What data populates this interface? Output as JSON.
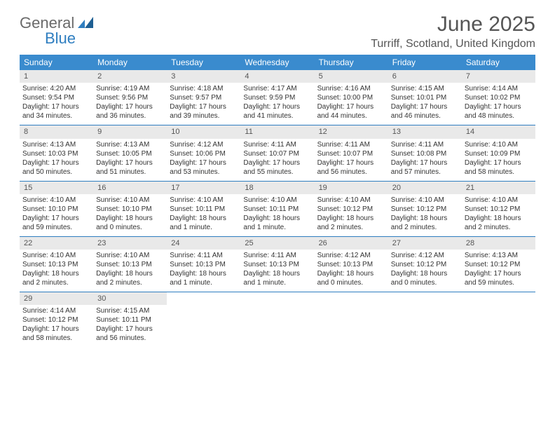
{
  "logo": {
    "general": "General",
    "blue": "Blue"
  },
  "header": {
    "month_title": "June 2025",
    "location": "Turriff, Scotland, United Kingdom"
  },
  "colors": {
    "accent": "#3a8bce",
    "separator": "#2f7ec0",
    "daynum_bg": "#e9e9e9",
    "text": "#333333"
  },
  "day_headers": [
    "Sunday",
    "Monday",
    "Tuesday",
    "Wednesday",
    "Thursday",
    "Friday",
    "Saturday"
  ],
  "weeks": [
    [
      {
        "n": "1",
        "sunrise": "Sunrise: 4:20 AM",
        "sunset": "Sunset: 9:54 PM",
        "d1": "Daylight: 17 hours",
        "d2": "and 34 minutes."
      },
      {
        "n": "2",
        "sunrise": "Sunrise: 4:19 AM",
        "sunset": "Sunset: 9:56 PM",
        "d1": "Daylight: 17 hours",
        "d2": "and 36 minutes."
      },
      {
        "n": "3",
        "sunrise": "Sunrise: 4:18 AM",
        "sunset": "Sunset: 9:57 PM",
        "d1": "Daylight: 17 hours",
        "d2": "and 39 minutes."
      },
      {
        "n": "4",
        "sunrise": "Sunrise: 4:17 AM",
        "sunset": "Sunset: 9:59 PM",
        "d1": "Daylight: 17 hours",
        "d2": "and 41 minutes."
      },
      {
        "n": "5",
        "sunrise": "Sunrise: 4:16 AM",
        "sunset": "Sunset: 10:00 PM",
        "d1": "Daylight: 17 hours",
        "d2": "and 44 minutes."
      },
      {
        "n": "6",
        "sunrise": "Sunrise: 4:15 AM",
        "sunset": "Sunset: 10:01 PM",
        "d1": "Daylight: 17 hours",
        "d2": "and 46 minutes."
      },
      {
        "n": "7",
        "sunrise": "Sunrise: 4:14 AM",
        "sunset": "Sunset: 10:02 PM",
        "d1": "Daylight: 17 hours",
        "d2": "and 48 minutes."
      }
    ],
    [
      {
        "n": "8",
        "sunrise": "Sunrise: 4:13 AM",
        "sunset": "Sunset: 10:03 PM",
        "d1": "Daylight: 17 hours",
        "d2": "and 50 minutes."
      },
      {
        "n": "9",
        "sunrise": "Sunrise: 4:13 AM",
        "sunset": "Sunset: 10:05 PM",
        "d1": "Daylight: 17 hours",
        "d2": "and 51 minutes."
      },
      {
        "n": "10",
        "sunrise": "Sunrise: 4:12 AM",
        "sunset": "Sunset: 10:06 PM",
        "d1": "Daylight: 17 hours",
        "d2": "and 53 minutes."
      },
      {
        "n": "11",
        "sunrise": "Sunrise: 4:11 AM",
        "sunset": "Sunset: 10:07 PM",
        "d1": "Daylight: 17 hours",
        "d2": "and 55 minutes."
      },
      {
        "n": "12",
        "sunrise": "Sunrise: 4:11 AM",
        "sunset": "Sunset: 10:07 PM",
        "d1": "Daylight: 17 hours",
        "d2": "and 56 minutes."
      },
      {
        "n": "13",
        "sunrise": "Sunrise: 4:11 AM",
        "sunset": "Sunset: 10:08 PM",
        "d1": "Daylight: 17 hours",
        "d2": "and 57 minutes."
      },
      {
        "n": "14",
        "sunrise": "Sunrise: 4:10 AM",
        "sunset": "Sunset: 10:09 PM",
        "d1": "Daylight: 17 hours",
        "d2": "and 58 minutes."
      }
    ],
    [
      {
        "n": "15",
        "sunrise": "Sunrise: 4:10 AM",
        "sunset": "Sunset: 10:10 PM",
        "d1": "Daylight: 17 hours",
        "d2": "and 59 minutes."
      },
      {
        "n": "16",
        "sunrise": "Sunrise: 4:10 AM",
        "sunset": "Sunset: 10:10 PM",
        "d1": "Daylight: 18 hours",
        "d2": "and 0 minutes."
      },
      {
        "n": "17",
        "sunrise": "Sunrise: 4:10 AM",
        "sunset": "Sunset: 10:11 PM",
        "d1": "Daylight: 18 hours",
        "d2": "and 1 minute."
      },
      {
        "n": "18",
        "sunrise": "Sunrise: 4:10 AM",
        "sunset": "Sunset: 10:11 PM",
        "d1": "Daylight: 18 hours",
        "d2": "and 1 minute."
      },
      {
        "n": "19",
        "sunrise": "Sunrise: 4:10 AM",
        "sunset": "Sunset: 10:12 PM",
        "d1": "Daylight: 18 hours",
        "d2": "and 2 minutes."
      },
      {
        "n": "20",
        "sunrise": "Sunrise: 4:10 AM",
        "sunset": "Sunset: 10:12 PM",
        "d1": "Daylight: 18 hours",
        "d2": "and 2 minutes."
      },
      {
        "n": "21",
        "sunrise": "Sunrise: 4:10 AM",
        "sunset": "Sunset: 10:12 PM",
        "d1": "Daylight: 18 hours",
        "d2": "and 2 minutes."
      }
    ],
    [
      {
        "n": "22",
        "sunrise": "Sunrise: 4:10 AM",
        "sunset": "Sunset: 10:13 PM",
        "d1": "Daylight: 18 hours",
        "d2": "and 2 minutes."
      },
      {
        "n": "23",
        "sunrise": "Sunrise: 4:10 AM",
        "sunset": "Sunset: 10:13 PM",
        "d1": "Daylight: 18 hours",
        "d2": "and 2 minutes."
      },
      {
        "n": "24",
        "sunrise": "Sunrise: 4:11 AM",
        "sunset": "Sunset: 10:13 PM",
        "d1": "Daylight: 18 hours",
        "d2": "and 1 minute."
      },
      {
        "n": "25",
        "sunrise": "Sunrise: 4:11 AM",
        "sunset": "Sunset: 10:13 PM",
        "d1": "Daylight: 18 hours",
        "d2": "and 1 minute."
      },
      {
        "n": "26",
        "sunrise": "Sunrise: 4:12 AM",
        "sunset": "Sunset: 10:13 PM",
        "d1": "Daylight: 18 hours",
        "d2": "and 0 minutes."
      },
      {
        "n": "27",
        "sunrise": "Sunrise: 4:12 AM",
        "sunset": "Sunset: 10:12 PM",
        "d1": "Daylight: 18 hours",
        "d2": "and 0 minutes."
      },
      {
        "n": "28",
        "sunrise": "Sunrise: 4:13 AM",
        "sunset": "Sunset: 10:12 PM",
        "d1": "Daylight: 17 hours",
        "d2": "and 59 minutes."
      }
    ],
    [
      {
        "n": "29",
        "sunrise": "Sunrise: 4:14 AM",
        "sunset": "Sunset: 10:12 PM",
        "d1": "Daylight: 17 hours",
        "d2": "and 58 minutes."
      },
      {
        "n": "30",
        "sunrise": "Sunrise: 4:15 AM",
        "sunset": "Sunset: 10:11 PM",
        "d1": "Daylight: 17 hours",
        "d2": "and 56 minutes."
      },
      null,
      null,
      null,
      null,
      null
    ]
  ]
}
